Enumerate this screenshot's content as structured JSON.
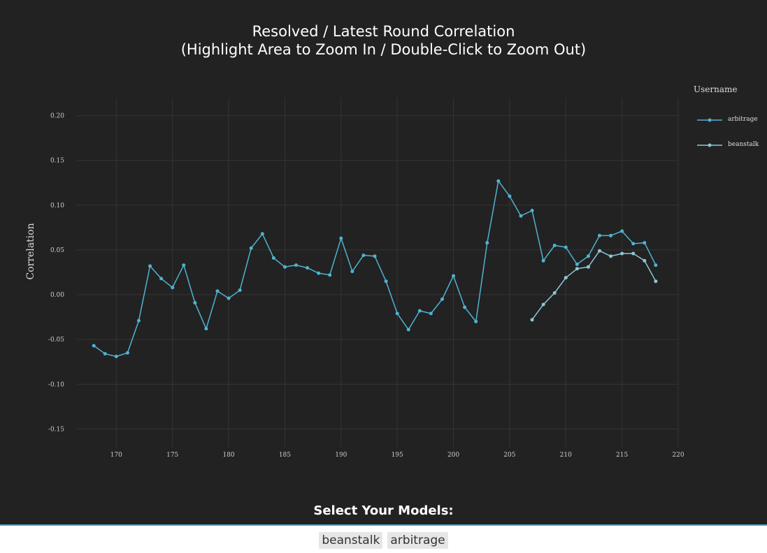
{
  "title_line1": "Resolved / Latest Round Correlation",
  "title_line2": "(Highlight Area to Zoom In / Double-Click to Zoom Out)",
  "legend": {
    "title": "Username",
    "items": [
      {
        "label": "arbitrage",
        "color": "#4fb3d1"
      },
      {
        "label": "beanstalk",
        "color": "#8fc6d6"
      }
    ]
  },
  "select_title": "Select Your Models:",
  "selected_models": [
    "beanstalk",
    "arbitrage"
  ],
  "chart_data": {
    "type": "line",
    "title": "Resolved / Latest Round Correlation",
    "xlabel": "",
    "ylabel": "Correlation",
    "xlim": [
      165.5,
      220
    ],
    "ylim": [
      -0.17,
      0.22
    ],
    "xticks": [
      170,
      175,
      180,
      185,
      190,
      195,
      200,
      205,
      210,
      215,
      220
    ],
    "yticks": [
      -0.15,
      -0.1,
      -0.05,
      0.0,
      0.05,
      0.1,
      0.15,
      0.2
    ],
    "ytick_labels": [
      "-0.15",
      "-0.10",
      "-0.05",
      "0.00",
      "0.05",
      "0.10",
      "0.15",
      "0.20"
    ],
    "grid": true,
    "legend_position": "top-right",
    "series": [
      {
        "name": "arbitrage",
        "color": "#4fb3d1",
        "x": [
          168,
          169,
          170,
          171,
          172,
          173,
          174,
          175,
          176,
          177,
          178,
          179,
          180,
          181,
          182,
          183,
          184,
          185,
          186,
          187,
          188,
          189,
          190,
          191,
          192,
          193,
          194,
          195,
          196,
          197,
          198,
          199,
          200,
          201,
          202,
          203,
          204,
          205,
          206,
          207,
          208,
          209,
          210,
          211,
          212,
          213,
          214,
          215,
          216,
          217,
          218
        ],
        "y": [
          -0.057,
          -0.066,
          -0.069,
          -0.065,
          -0.029,
          0.032,
          0.018,
          0.008,
          0.033,
          -0.009,
          -0.038,
          0.004,
          -0.004,
          0.005,
          0.052,
          0.068,
          0.041,
          0.031,
          0.033,
          0.03,
          0.024,
          0.022,
          0.063,
          0.026,
          0.044,
          0.043,
          0.015,
          -0.021,
          -0.039,
          -0.018,
          -0.021,
          -0.005,
          0.021,
          -0.014,
          -0.03,
          0.058,
          0.127,
          0.11,
          0.088,
          0.094,
          0.038,
          0.055,
          0.053,
          0.034,
          0.043,
          0.066,
          0.066,
          0.071,
          0.057,
          0.058,
          0.033
        ]
      },
      {
        "name": "beanstalk",
        "color": "#8fc6d6",
        "x": [
          207,
          208,
          209,
          210,
          211,
          212,
          213,
          214,
          215,
          216,
          217,
          218
        ],
        "y": [
          -0.028,
          -0.011,
          0.002,
          0.019,
          0.029,
          0.031,
          0.049,
          0.043,
          0.046,
          0.046,
          0.038,
          0.015
        ]
      }
    ]
  }
}
